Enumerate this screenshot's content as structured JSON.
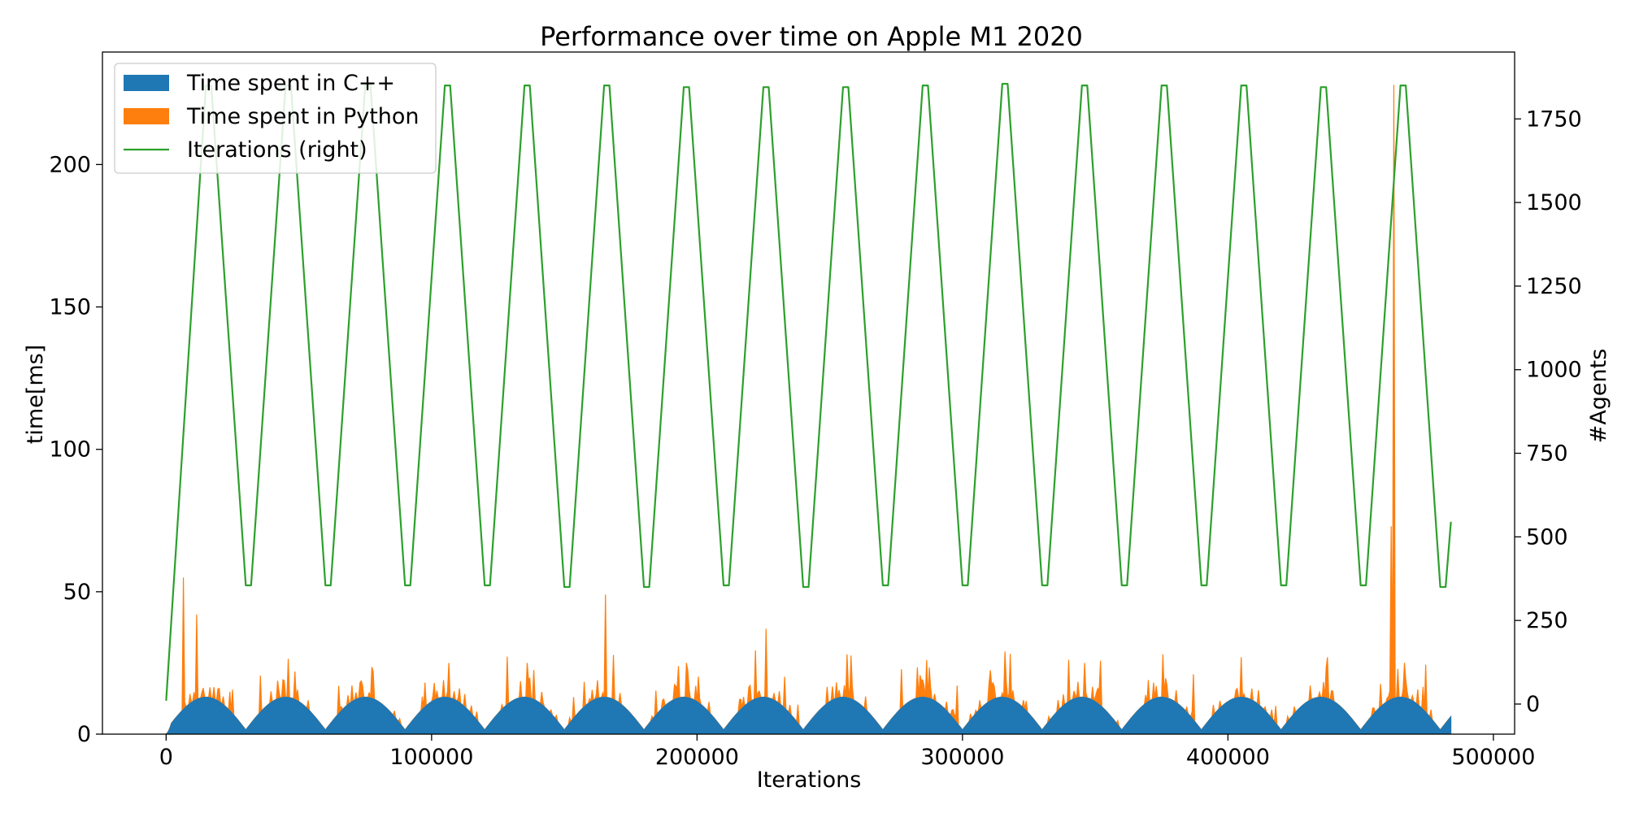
{
  "chart_data": {
    "type": "area",
    "title": "Performance over time on Apple M1 2020",
    "xlabel": "Iterations",
    "ylabel_left": "time[ms]",
    "ylabel_right": "#Agents",
    "xlim": [
      -24000,
      508000
    ],
    "ylim_left": [
      0,
      239.5
    ],
    "ylim_right": [
      -90,
      1950
    ],
    "x_ticks": [
      0,
      100000,
      200000,
      300000,
      400000,
      500000
    ],
    "y_left_ticks": [
      0,
      50,
      100,
      150,
      200
    ],
    "y_right_ticks": [
      0,
      250,
      500,
      750,
      1000,
      1250,
      1500,
      1750
    ],
    "grid": false,
    "legend_position": "top-left",
    "legend": [
      {
        "label": "Time spent in C++",
        "kind": "patch",
        "color": "#1f77b4"
      },
      {
        "label": "Time spent in Python",
        "kind": "patch",
        "color": "#ff7f0e"
      },
      {
        "label": "Iterations (right)",
        "kind": "line",
        "color": "#2ca02c"
      }
    ],
    "series": [
      {
        "name": "Iterations (right)",
        "axis": "right",
        "color": "#2ca02c",
        "x": [
          0,
          15000,
          17000,
          30000,
          32000,
          45000,
          47000,
          60000,
          62000,
          75000,
          77000,
          90000,
          92000,
          105000,
          107000,
          120000,
          122000,
          135000,
          137000,
          150000,
          152000,
          165000,
          167000,
          180000,
          182000,
          195000,
          197000,
          210000,
          212000,
          225000,
          227000,
          240000,
          242000,
          255000,
          257000,
          270000,
          272000,
          285000,
          287000,
          300000,
          302000,
          315000,
          317000,
          330000,
          332000,
          345000,
          347000,
          360000,
          362000,
          375000,
          377000,
          390000,
          392000,
          405000,
          407000,
          420000,
          422000,
          435000,
          437000,
          450000,
          452000,
          465000,
          467000,
          480000,
          482000,
          484000
        ],
        "y": [
          10,
          1850,
          1850,
          355,
          355,
          1850,
          1850,
          355,
          355,
          1850,
          1850,
          355,
          355,
          1850,
          1850,
          355,
          355,
          1850,
          1850,
          350,
          350,
          1850,
          1850,
          350,
          350,
          1845,
          1845,
          355,
          355,
          1845,
          1845,
          350,
          350,
          1845,
          1845,
          355,
          355,
          1850,
          1850,
          355,
          355,
          1855,
          1855,
          355,
          355,
          1850,
          1850,
          355,
          355,
          1850,
          1850,
          355,
          355,
          1850,
          1850,
          355,
          355,
          1845,
          1845,
          355,
          355,
          1850,
          1850,
          350,
          350,
          545
        ]
      },
      {
        "name": "Time spent in C++",
        "axis": "left",
        "color": "#1f77b4",
        "period": 30000,
        "x_start": 0,
        "x_end": 484000,
        "peak_ms": 13,
        "base_ms": 1.5
      },
      {
        "name": "Time spent in Python",
        "axis": "left",
        "color": "#ff7f0e",
        "period": 30000,
        "x_start": 0,
        "x_end": 484000,
        "spikes": [
          [
            6500,
            55
          ],
          [
            11500,
            42
          ],
          [
            165500,
            49
          ],
          [
            226000,
            37
          ],
          [
            462500,
            228
          ],
          [
            461500,
            73
          ],
          [
            256500,
            28
          ],
          [
            316000,
            29
          ],
          [
            375500,
            28
          ],
          [
            405000,
            27
          ],
          [
            437500,
            27
          ],
          [
            106500,
            25
          ],
          [
            136000,
            25
          ],
          [
            48500,
            22
          ],
          [
            78000,
            22
          ],
          [
            196000,
            25
          ],
          [
            286500,
            26
          ],
          [
            346000,
            25
          ]
        ]
      }
    ]
  }
}
